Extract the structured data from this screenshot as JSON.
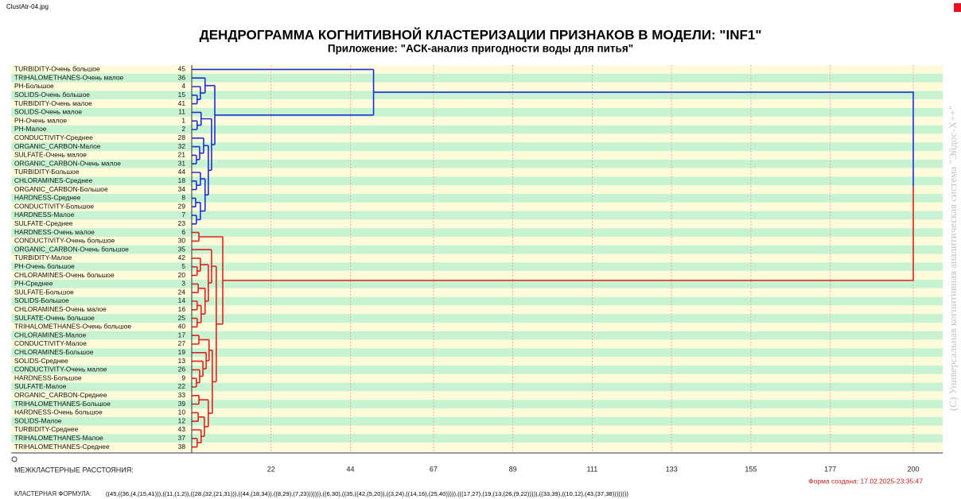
{
  "window": {
    "filename": "ClustAtr-04.jpg"
  },
  "chart_data": {
    "type": "dendrogram",
    "title": "ДЕНДРОГРАММА КОГНИТИВНОЙ КЛАСТЕРИЗАЦИИ ПРИЗНАКОВ В МОДЕЛИ: \"INF1\"",
    "subtitle": "Приложение: \"АСК-анализ пригодности воды для питья\"",
    "leaves": [
      {
        "label": "TURBIDITY-Очень большое",
        "number": 45
      },
      {
        "label": "TRIHALOMETHANES-Очень малое",
        "number": 36
      },
      {
        "label": "PH-Большое",
        "number": 4
      },
      {
        "label": "SOLIDS-Очень большое",
        "number": 15
      },
      {
        "label": "TURBIDITY-Очень малое",
        "number": 41
      },
      {
        "label": "SOLIDS-Очень малое",
        "number": 11
      },
      {
        "label": "PH-Очень малое",
        "number": 1
      },
      {
        "label": "PH-Малое",
        "number": 2
      },
      {
        "label": "CONDUCTIVITY-Среднее",
        "number": 28
      },
      {
        "label": "ORGANIC_CARBON-Малое",
        "number": 32
      },
      {
        "label": "SULFATE-Очень малое",
        "number": 21
      },
      {
        "label": "ORGANIC_CARBON-Очень малое",
        "number": 31
      },
      {
        "label": "TURBIDITY-Большое",
        "number": 44
      },
      {
        "label": "CHLORAMINES-Среднее",
        "number": 18
      },
      {
        "label": "ORGANIC_CARBON-Большое",
        "number": 34
      },
      {
        "label": "HARDNESS-Среднее",
        "number": 8
      },
      {
        "label": "CONDUCTIVITY-Большое",
        "number": 29
      },
      {
        "label": "HARDNESS-Малое",
        "number": 7
      },
      {
        "label": "SULFATE-Среднее",
        "number": 23
      },
      {
        "label": "HARDNESS-Очень малое",
        "number": 6
      },
      {
        "label": "CONDUCTIVITY-Очень большое",
        "number": 30
      },
      {
        "label": "ORGANIC_CARBON-Очень большое",
        "number": 35
      },
      {
        "label": "TURBIDITY-Малое",
        "number": 42
      },
      {
        "label": "PH-Очень большое",
        "number": 5
      },
      {
        "label": "CHLORAMINES-Очень большое",
        "number": 20
      },
      {
        "label": "PH-Среднее",
        "number": 3
      },
      {
        "label": "SULFATE-Большое",
        "number": 24
      },
      {
        "label": "SOLIDS-Большое",
        "number": 14
      },
      {
        "label": "CHLORAMINES-Очень малое",
        "number": 16
      },
      {
        "label": "SULFATE-Очень большое",
        "number": 25
      },
      {
        "label": "TRIHALOMETHANES-Очень большое",
        "number": 40
      },
      {
        "label": "CHLORAMINES-Малое",
        "number": 17
      },
      {
        "label": "CONDUCTIVITY-Малое",
        "number": 27
      },
      {
        "label": "CHLORAMINES-Большое",
        "number": 19
      },
      {
        "label": "SOLIDS-Среднее",
        "number": 13
      },
      {
        "label": "CONDUCTIVITY-Очень малое",
        "number": 26
      },
      {
        "label": "HARDNESS-Большое",
        "number": 9
      },
      {
        "label": "SULFATE-Малое",
        "number": 22
      },
      {
        "label": "ORGANIC_CARBON-Среднее",
        "number": 33
      },
      {
        "label": "TRIHALOMETHANES-Большое",
        "number": 39
      },
      {
        "label": "HARDNESS-Очень большое",
        "number": 10
      },
      {
        "label": "SOLIDS-Малое",
        "number": 12
      },
      {
        "label": "TURBIDITY-Среднее",
        "number": 43
      },
      {
        "label": "TRIHALOMETHANES-Малое",
        "number": 37
      },
      {
        "label": "TRIHALOMETHANES-Среднее",
        "number": 38
      }
    ],
    "xlim": [
      0,
      200
    ],
    "xticks": [
      22,
      44,
      67,
      89,
      111,
      133,
      155,
      177,
      200
    ],
    "grid": true,
    "x_axis_label": "МЕЖКЛАСТЕРНЫЕ РАССТОЯНИЯ:",
    "formula_label": "КЛАСТЕРНАЯ ФОРМУЛА:",
    "formula": "((45,((36,(4,(15,41))),((11,(1,2)),((28,(32,(21,31))),((44,(18,34)),((8,29),(7,23))))))),((6,30),((35,((42,(5,20)),((3,24),((14,16),(25,40))))),(((17,27),(19,(13,(26,(9,22))))),((33,39),((10,12),(43,(37,38))))))))",
    "merge_distances": [
      1.5,
      2.4,
      3.7,
      1.5,
      2.6,
      1.3,
      2.2,
      3.3,
      1.3,
      2.4,
      1.1,
      1.3,
      2.4,
      3.7,
      4.6,
      5.5,
      6.4,
      50.4,
      2.0,
      1.5,
      2.4,
      1.8,
      1.5,
      1.5,
      2.6,
      3.7,
      4.6,
      5.5,
      2.0,
      1.3,
      2.2,
      3.1,
      4.0,
      4.8,
      2.0,
      1.8,
      1.5,
      2.6,
      3.5,
      4.6,
      5.7,
      6.8,
      8.6,
      200
    ],
    "cluster_colors": [
      "#1f2fd6",
      "#e0231a"
    ],
    "created": "Форма создана: 17.02.2025-23:35:47",
    "copyright": "(С) Универсальная когнитивная аналитическая система \"Эйдос-Х++\""
  }
}
